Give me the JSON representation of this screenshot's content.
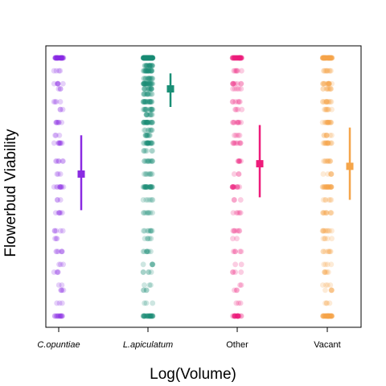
{
  "chart_data": {
    "type": "scatter",
    "title": "",
    "xlabel": "Log(Volume)",
    "ylabel": "Flowerbud Viability",
    "categories": [
      "C.opuntiae",
      "L.apiculatum",
      "Other",
      "Vacant"
    ],
    "category_italic": [
      true,
      true,
      false,
      false
    ],
    "ylim": [
      0,
      1
    ],
    "grid": false,
    "legend": "none",
    "colors": [
      "#8a2be2",
      "#1a8f76",
      "#ee1b7a",
      "#f5a54a"
    ],
    "point_opacity": 0.22,
    "summary": [
      {
        "category": "C.opuntiae",
        "mean": 0.55,
        "lower": 0.41,
        "upper": 0.7
      },
      {
        "category": "L.apiculatum",
        "mean": 0.88,
        "lower": 0.81,
        "upper": 0.94
      },
      {
        "category": "Other",
        "mean": 0.59,
        "lower": 0.46,
        "upper": 0.74
      },
      {
        "category": "Vacant",
        "mean": 0.58,
        "lower": 0.45,
        "upper": 0.73
      }
    ],
    "series": [
      {
        "category": "C.opuntiae",
        "counts": [
          [
            "1",
            40
          ],
          [
            "0",
            14
          ],
          [
            "0.9",
            6
          ],
          [
            "0.83",
            4
          ],
          [
            "0.75",
            7
          ],
          [
            "0.67",
            8
          ],
          [
            "0.6",
            6
          ],
          [
            "0.5",
            10
          ],
          [
            "0.4",
            6
          ],
          [
            "0.33",
            5
          ],
          [
            "0.25",
            6
          ],
          [
            "0.17",
            4
          ],
          [
            "0.1",
            4
          ],
          [
            "0.05",
            3
          ],
          [
            "0.95",
            4
          ],
          [
            "0.88",
            3
          ],
          [
            "0.8",
            3
          ],
          [
            "0.7",
            3
          ],
          [
            "0.55",
            3
          ],
          [
            "0.45",
            3
          ],
          [
            "0.3",
            3
          ],
          [
            "0.2",
            3
          ],
          [
            "0.12",
            2
          ]
        ]
      },
      {
        "category": "L.apiculatum",
        "counts": [
          [
            "1",
            160
          ],
          [
            "0",
            30
          ],
          [
            "0.9",
            30
          ],
          [
            "0.83",
            20
          ],
          [
            "0.75",
            25
          ],
          [
            "0.67",
            20
          ],
          [
            "0.6",
            12
          ],
          [
            "0.5",
            25
          ],
          [
            "0.4",
            8
          ],
          [
            "0.33",
            8
          ],
          [
            "0.25",
            8
          ],
          [
            "0.17",
            5
          ],
          [
            "0.1",
            4
          ],
          [
            "0.05",
            3
          ],
          [
            "0.95",
            25
          ],
          [
            "0.88",
            15
          ],
          [
            "0.8",
            15
          ],
          [
            "0.7",
            10
          ],
          [
            "0.55",
            8
          ],
          [
            "0.45",
            6
          ],
          [
            "0.3",
            5
          ],
          [
            "0.2",
            5
          ],
          [
            "0.12",
            3
          ],
          [
            "0.97",
            20
          ],
          [
            "0.92",
            15
          ],
          [
            "0.86",
            12
          ],
          [
            "0.78",
            10
          ],
          [
            "0.72",
            8
          ],
          [
            "0.64",
            6
          ]
        ]
      },
      {
        "category": "Other",
        "counts": [
          [
            "1",
            45
          ],
          [
            "0",
            22
          ],
          [
            "0.9",
            8
          ],
          [
            "0.83",
            6
          ],
          [
            "0.75",
            8
          ],
          [
            "0.67",
            8
          ],
          [
            "0.6",
            6
          ],
          [
            "0.5",
            12
          ],
          [
            "0.4",
            5
          ],
          [
            "0.33",
            6
          ],
          [
            "0.25",
            5
          ],
          [
            "0.17",
            4
          ],
          [
            "0.1",
            3
          ],
          [
            "0.05",
            3
          ],
          [
            "0.95",
            6
          ],
          [
            "0.88",
            5
          ],
          [
            "0.8",
            4
          ],
          [
            "0.7",
            4
          ],
          [
            "0.55",
            3
          ],
          [
            "0.45",
            3
          ],
          [
            "0.3",
            2
          ],
          [
            "0.2",
            2
          ],
          [
            "0.12",
            2
          ]
        ]
      },
      {
        "category": "Vacant",
        "counts": [
          [
            "1",
            60
          ],
          [
            "0",
            45
          ],
          [
            "0.9",
            15
          ],
          [
            "0.83",
            12
          ],
          [
            "0.75",
            15
          ],
          [
            "0.67",
            15
          ],
          [
            "0.6",
            10
          ],
          [
            "0.5",
            25
          ],
          [
            "0.4",
            10
          ],
          [
            "0.33",
            10
          ],
          [
            "0.25",
            8
          ],
          [
            "0.17",
            6
          ],
          [
            "0.1",
            5
          ],
          [
            "0.05",
            4
          ],
          [
            "0.95",
            10
          ],
          [
            "0.88",
            10
          ],
          [
            "0.8",
            8
          ],
          [
            "0.7",
            8
          ],
          [
            "0.55",
            6
          ],
          [
            "0.45",
            6
          ],
          [
            "0.3",
            5
          ],
          [
            "0.2",
            4
          ],
          [
            "0.12",
            4
          ]
        ]
      }
    ]
  }
}
